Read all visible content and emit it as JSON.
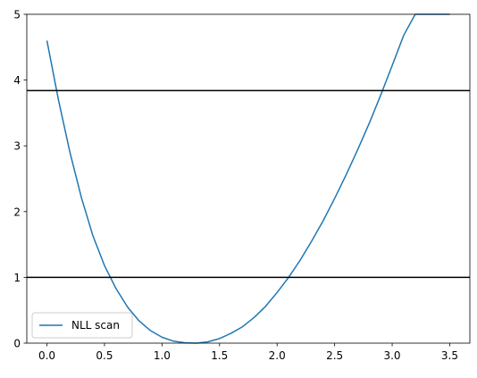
{
  "chart_data": {
    "type": "line",
    "xlim": [
      -0.175,
      3.675
    ],
    "ylim": [
      0,
      5
    ],
    "x_ticks": [
      0.0,
      0.5,
      1.0,
      1.5,
      2.0,
      2.5,
      3.0,
      3.5
    ],
    "x_tick_labels": [
      "0.0",
      "0.5",
      "1.0",
      "1.5",
      "2.0",
      "2.5",
      "3.0",
      "3.5"
    ],
    "y_ticks": [
      0,
      1,
      2,
      3,
      4,
      5
    ],
    "y_tick_labels": [
      "0",
      "1",
      "2",
      "3",
      "4",
      "5"
    ],
    "grid": false,
    "legend": {
      "position": "lower-left",
      "entries": [
        "NLL scan"
      ]
    },
    "series": [
      {
        "name": "NLL scan",
        "color": "#1f77b4",
        "x": [
          0.0,
          0.1,
          0.2,
          0.3,
          0.4,
          0.5,
          0.6,
          0.7,
          0.8,
          0.9,
          1.0,
          1.1,
          1.2,
          1.3,
          1.4,
          1.5,
          1.6,
          1.7,
          1.8,
          1.9,
          2.0,
          2.1,
          2.2,
          2.3,
          2.4,
          2.5,
          2.6,
          2.7,
          2.8,
          2.9,
          3.0,
          3.1,
          3.2,
          3.3,
          3.4,
          3.5
        ],
        "y": [
          4.6,
          3.7,
          2.9,
          2.21,
          1.63,
          1.18,
          0.83,
          0.55,
          0.34,
          0.19,
          0.09,
          0.03,
          0.005,
          0.0,
          0.02,
          0.07,
          0.15,
          0.25,
          0.39,
          0.56,
          0.77,
          1.0,
          1.26,
          1.55,
          1.86,
          2.2,
          2.56,
          2.94,
          3.34,
          3.77,
          4.22,
          4.68,
          5.0,
          5.0,
          5.0,
          5.0
        ]
      }
    ],
    "hlines": [
      {
        "y": 3.84,
        "color": "#000000"
      },
      {
        "y": 1.0,
        "color": "#000000"
      }
    ]
  }
}
